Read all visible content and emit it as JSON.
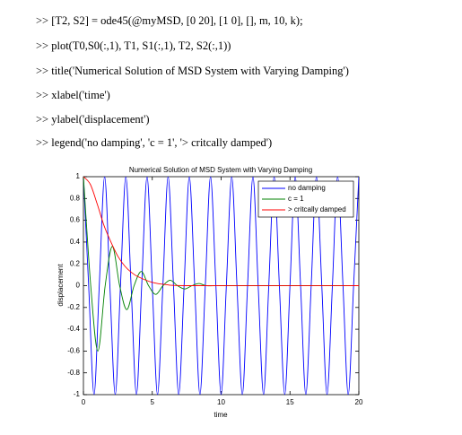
{
  "code_lines": [
    ">> [T2, S2] = ode45(@myMSD, [0 20], [1 0], [], m, 10, k);",
    ">> plot(T0,S0(:,1), T1, S1(:,1), T2, S2(:,1))",
    ">> title('Numerical Solution of MSD System with Varying Damping')",
    ">> xlabel('time')",
    ">> ylabel('displacement')",
    ">> legend('no damping', 'c = 1', '> critcally damped')"
  ],
  "chart_data": {
    "type": "line",
    "title": "Numerical Solution of MSD System with Varying Damping",
    "xlabel": "time",
    "ylabel": "displacement",
    "xlim": [
      0,
      20
    ],
    "ylim": [
      -1,
      1
    ],
    "xticks": [
      0,
      5,
      10,
      15,
      20
    ],
    "yticks": [
      -1,
      -0.8,
      -0.6,
      -0.4,
      -0.2,
      0,
      0.2,
      0.4,
      0.6,
      0.8,
      1
    ],
    "legend": "northeast",
    "series": [
      {
        "name": "no damping",
        "color": "#0000ff",
        "x": [
          0,
          0.38,
          0.77,
          1.15,
          1.54,
          1.92,
          2.31,
          2.69,
          3.08,
          3.46,
          3.85,
          4.23,
          4.62,
          5,
          5.38,
          5.77,
          6.15,
          6.54,
          6.92,
          7.31,
          7.69,
          8.08,
          8.46,
          8.85,
          9.23,
          9.62,
          10,
          10.38,
          10.77,
          11.15,
          11.54,
          11.92,
          12.31,
          12.69,
          13.08,
          13.46,
          13.85,
          14.23,
          14.62,
          15,
          15.38,
          15.77,
          16.15,
          16.54,
          16.92,
          17.31,
          17.69,
          18.08,
          18.46,
          18.85,
          19.23,
          19.62,
          20
        ],
        "values": [
          1,
          0,
          -1,
          0,
          1,
          0,
          -1,
          0,
          1,
          0,
          -1,
          0,
          1,
          0,
          -1,
          0,
          1,
          0,
          -1,
          0,
          1,
          0,
          -1,
          0,
          1,
          0,
          -1,
          0,
          1,
          0,
          -1,
          0,
          1,
          0,
          -1,
          0,
          1,
          0,
          -1,
          0,
          1,
          0,
          -1,
          0,
          1,
          0,
          -1,
          0,
          1,
          0,
          -1,
          0,
          1
        ]
      },
      {
        "name": "c = 1",
        "color": "#008000",
        "x": [
          0,
          0.53,
          1.05,
          1.58,
          2.1,
          2.63,
          3.15,
          3.68,
          4.2,
          4.73,
          5.25,
          5.78,
          6.3,
          6.83,
          7.35,
          7.88,
          8.4,
          8.93,
          10,
          12,
          14,
          16,
          18,
          20
        ],
        "values": [
          1,
          0,
          -0.6,
          0,
          0.36,
          0,
          -0.22,
          0,
          0.13,
          0,
          -0.08,
          0,
          0.05,
          0,
          -0.03,
          0,
          0.02,
          0,
          0,
          0,
          0,
          0,
          0,
          0
        ]
      },
      {
        "name": "> critcally damped",
        "color": "#ff0000",
        "x": [
          0,
          0.5,
          1,
          1.5,
          2,
          2.5,
          3,
          3.5,
          4,
          5,
          6,
          8,
          20
        ],
        "values": [
          1,
          0.93,
          0.75,
          0.55,
          0.4,
          0.27,
          0.18,
          0.12,
          0.08,
          0.03,
          0.01,
          0,
          0
        ]
      }
    ]
  }
}
